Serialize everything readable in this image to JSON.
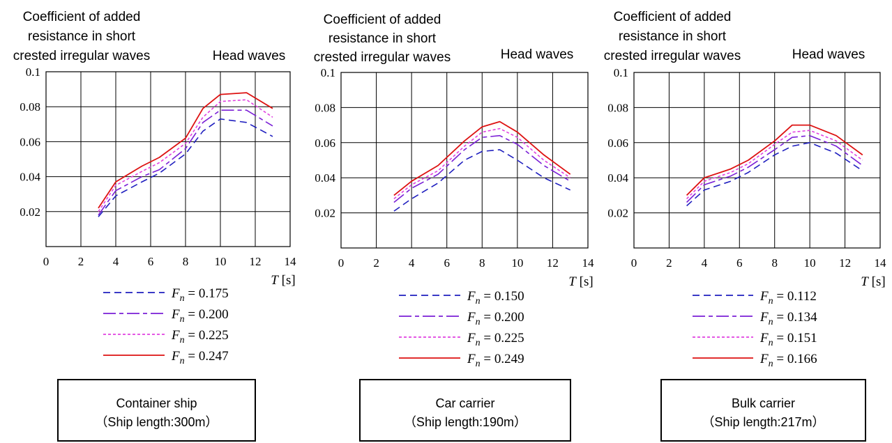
{
  "chart_data": [
    {
      "type": "line",
      "title": [
        "Coefficient of added",
        "resistance in short",
        "crested irregular waves"
      ],
      "subtitle": "Head waves",
      "xlabel_var": "T",
      "xlabel_unit": " [s]",
      "xlim": [
        0,
        14
      ],
      "ylim": [
        0,
        0.1
      ],
      "xticks": [
        "0",
        "2",
        "4",
        "6",
        "8",
        "10",
        "12",
        "14"
      ],
      "yticks": [
        "0.02",
        "0.04",
        "0.06",
        "0.08",
        "0.1"
      ],
      "grid": true,
      "x": [
        3,
        4,
        5.5,
        6.5,
        8,
        9,
        10,
        11.5,
        13
      ],
      "series": [
        {
          "name": "0.175",
          "color": "#1f1fbf",
          "values": [
            0.017,
            0.029,
            0.037,
            0.042,
            0.053,
            0.066,
            0.073,
            0.071,
            0.063
          ]
        },
        {
          "name": "0.200",
          "color": "#7a1fd6",
          "values": [
            0.018,
            0.032,
            0.04,
            0.044,
            0.056,
            0.071,
            0.078,
            0.078,
            0.069
          ]
        },
        {
          "name": "0.225",
          "color": "#e040e0",
          "values": [
            0.02,
            0.035,
            0.043,
            0.048,
            0.059,
            0.074,
            0.083,
            0.084,
            0.074
          ]
        },
        {
          "name": "0.247",
          "color": "#dd1111",
          "values": [
            0.022,
            0.037,
            0.046,
            0.051,
            0.062,
            0.079,
            0.087,
            0.088,
            0.079
          ]
        }
      ],
      "legend_symbol": "F",
      "legend_sub": "n",
      "caption": [
        "Container ship",
        "（Ship length:300m）"
      ]
    },
    {
      "type": "line",
      "title": [
        "Coefficient of added",
        "resistance in short",
        "crested irregular waves"
      ],
      "subtitle": "Head waves",
      "xlabel_var": "T",
      "xlabel_unit": " [s]",
      "xlim": [
        0,
        14
      ],
      "ylim": [
        0,
        0.1
      ],
      "xticks": [
        "0",
        "2",
        "4",
        "6",
        "8",
        "10",
        "12",
        "14"
      ],
      "yticks": [
        "0.02",
        "0.04",
        "0.06",
        "0.08",
        "0.1"
      ],
      "grid": true,
      "x": [
        3,
        4,
        5.5,
        7,
        8,
        9,
        10,
        11.5,
        13
      ],
      "series": [
        {
          "name": "0.150",
          "color": "#1f1fbf",
          "values": [
            0.021,
            0.028,
            0.037,
            0.05,
            0.055,
            0.056,
            0.05,
            0.04,
            0.033
          ]
        },
        {
          "name": "0.200",
          "color": "#7a1fd6",
          "values": [
            0.026,
            0.034,
            0.042,
            0.056,
            0.063,
            0.064,
            0.059,
            0.047,
            0.038
          ]
        },
        {
          "name": "0.225",
          "color": "#e040e0",
          "values": [
            0.028,
            0.036,
            0.044,
            0.058,
            0.066,
            0.068,
            0.063,
            0.05,
            0.04
          ]
        },
        {
          "name": "0.249",
          "color": "#dd1111",
          "values": [
            0.03,
            0.038,
            0.047,
            0.061,
            0.069,
            0.072,
            0.066,
            0.053,
            0.042
          ]
        }
      ],
      "legend_symbol": "F",
      "legend_sub": "n",
      "caption": [
        "Car carrier",
        "（Ship length:190m）"
      ]
    },
    {
      "type": "line",
      "title": [
        "Coefficient of added",
        "resistance in short",
        "crested irregular waves"
      ],
      "subtitle": "Head waves",
      "xlabel_var": "T",
      "xlabel_unit": " [s]",
      "xlim": [
        0,
        14
      ],
      "ylim": [
        0,
        0.1
      ],
      "xticks": [
        "0",
        "2",
        "4",
        "6",
        "8",
        "10",
        "12",
        "14"
      ],
      "yticks": [
        "0.02",
        "0.04",
        "0.06",
        "0.08",
        "0.1"
      ],
      "grid": true,
      "x": [
        3,
        4,
        5.5,
        6.5,
        8,
        9,
        10,
        11.5,
        13
      ],
      "series": [
        {
          "name": "0.112",
          "color": "#1f1fbf",
          "values": [
            0.024,
            0.033,
            0.038,
            0.043,
            0.053,
            0.058,
            0.06,
            0.054,
            0.044
          ]
        },
        {
          "name": "0.134",
          "color": "#7a1fd6",
          "values": [
            0.026,
            0.036,
            0.041,
            0.046,
            0.056,
            0.063,
            0.064,
            0.058,
            0.047
          ]
        },
        {
          "name": "0.151",
          "color": "#e040e0",
          "values": [
            0.028,
            0.038,
            0.043,
            0.048,
            0.059,
            0.066,
            0.067,
            0.061,
            0.05
          ]
        },
        {
          "name": "0.166",
          "color": "#dd1111",
          "values": [
            0.03,
            0.04,
            0.045,
            0.05,
            0.061,
            0.07,
            0.07,
            0.064,
            0.053
          ]
        }
      ],
      "legend_symbol": "F",
      "legend_sub": "n",
      "caption": [
        "Bulk carrier",
        "（Ship length:217m）"
      ]
    }
  ]
}
